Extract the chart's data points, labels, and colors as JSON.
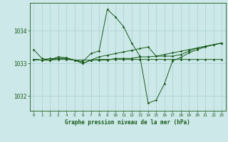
{
  "title": "Graphe pression niveau de la mer (hPa)",
  "bg_color": "#cce8e8",
  "grid_color": "#aad0d0",
  "line_color": "#1a5c1a",
  "xlim": [
    -0.5,
    23.5
  ],
  "ylim": [
    1031.55,
    1034.85
  ],
  "yticks": [
    1032,
    1033,
    1034
  ],
  "xticks": [
    0,
    1,
    2,
    3,
    4,
    5,
    6,
    7,
    8,
    9,
    10,
    11,
    12,
    13,
    14,
    15,
    16,
    17,
    18,
    19,
    20,
    21,
    22,
    23
  ],
  "series": [
    [
      1033.42,
      1033.15,
      1033.1,
      1033.2,
      1033.17,
      1033.1,
      1033.05,
      1033.3,
      1033.38,
      1034.65,
      1034.42,
      1034.12,
      1033.62,
      1033.22,
      1031.78,
      1031.88,
      1032.38,
      1033.08,
      1033.18,
      1033.32,
      1033.42,
      1033.5,
      1033.57,
      1033.62
    ],
    [
      1033.12,
      1033.1,
      1033.1,
      1033.12,
      1033.12,
      1033.1,
      1033.1,
      1033.1,
      1033.12,
      1033.12,
      1033.12,
      1033.12,
      1033.12,
      1033.12,
      1033.12,
      1033.12,
      1033.12,
      1033.12,
      1033.12,
      1033.12,
      1033.12,
      1033.12,
      1033.12,
      1033.12
    ],
    [
      1033.12,
      1033.1,
      1033.1,
      1033.15,
      1033.15,
      1033.1,
      1033.0,
      1033.1,
      1033.1,
      1033.1,
      1033.15,
      1033.15,
      1033.15,
      1033.2,
      1033.2,
      1033.22,
      1033.27,
      1033.32,
      1033.37,
      1033.42,
      1033.47,
      1033.52,
      1033.57,
      1033.62
    ],
    [
      1033.12,
      1033.1,
      1033.15,
      1033.15,
      1033.15,
      1033.1,
      1033.0,
      1033.1,
      1033.2,
      1033.25,
      1033.3,
      1033.35,
      1033.4,
      1033.45,
      1033.5,
      1033.22,
      1033.22,
      1033.22,
      1033.27,
      1033.37,
      1033.47,
      1033.52,
      1033.57,
      1033.62
    ]
  ]
}
